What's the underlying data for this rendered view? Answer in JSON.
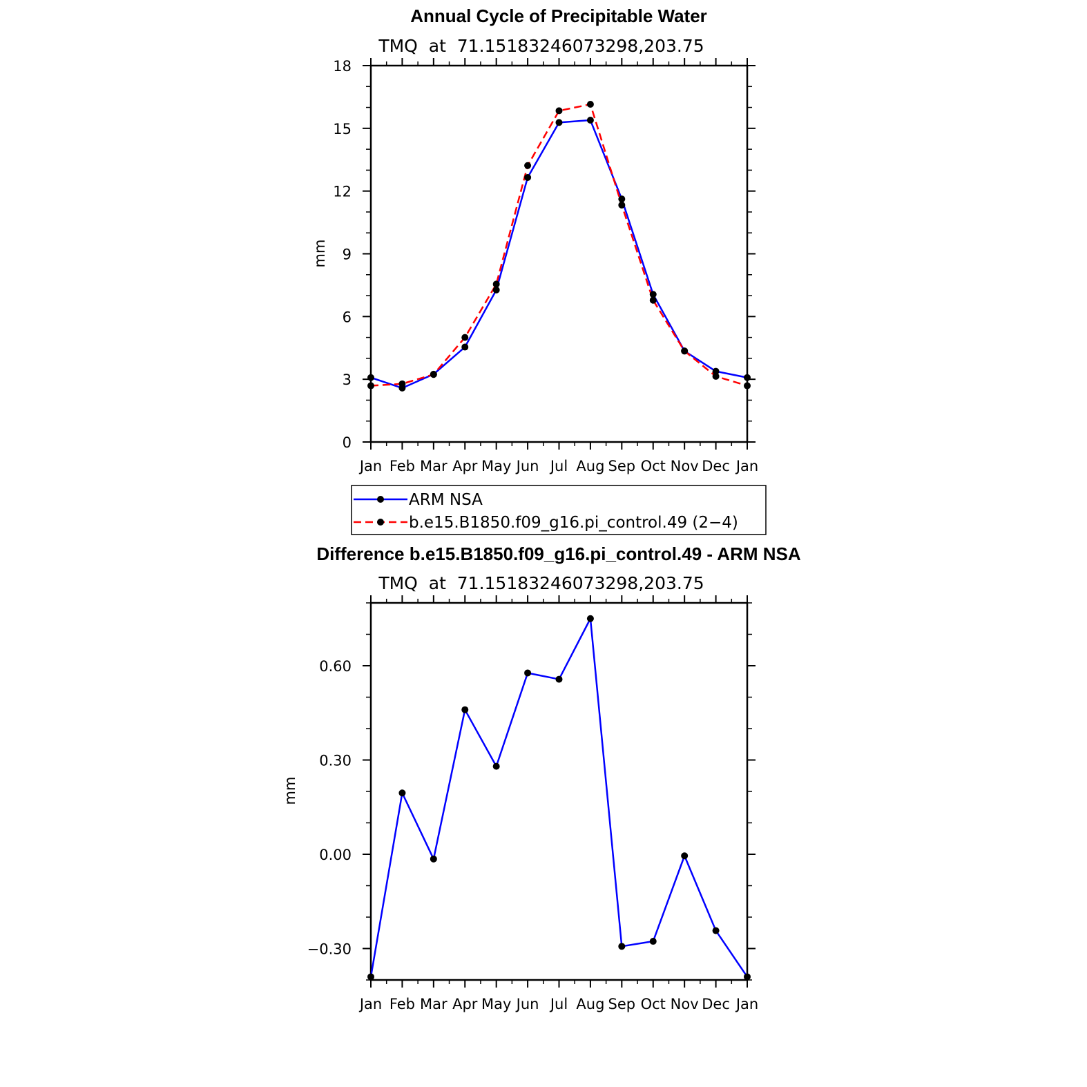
{
  "chart_data": [
    {
      "type": "line",
      "title": "Annual Cycle of Precipitable Water",
      "subtitle": "TMQ  at  71.15183246073298,203.75",
      "xlabel": "",
      "ylabel": "mm",
      "categories": [
        "Jan",
        "Feb",
        "Mar",
        "Apr",
        "May",
        "Jun",
        "Jul",
        "Aug",
        "Sep",
        "Oct",
        "Nov",
        "Dec",
        "Jan"
      ],
      "ylim": [
        0,
        18
      ],
      "yticks": [
        0,
        3,
        6,
        9,
        12,
        15,
        18
      ],
      "ytick_labels": [
        "0",
        "3",
        "6",
        "9",
        "12",
        "15",
        "18"
      ],
      "legend_position": "below",
      "series": [
        {
          "name": "ARM NSA",
          "color": "#0000ff",
          "dash": "solid",
          "values": [
            3.08,
            2.58,
            3.24,
            4.54,
            7.27,
            12.65,
            15.28,
            15.39,
            11.62,
            7.06,
            4.35,
            3.38,
            3.08
          ]
        },
        {
          "name": "b.e15.B1850.f09_g16.pi_control.49 (2−4)",
          "color": "#ff0000",
          "dash": "dashed",
          "values": [
            2.69,
            2.78,
            3.23,
            5.0,
            7.55,
            13.22,
            15.84,
            16.15,
            11.33,
            6.78,
            4.35,
            3.14,
            2.69
          ]
        }
      ]
    },
    {
      "type": "line",
      "title": "Difference b.e15.B1850.f09_g16.pi_control.49 - ARM NSA",
      "subtitle": "TMQ  at  71.15183246073298,203.75",
      "xlabel": "",
      "ylabel": "mm",
      "categories": [
        "Jan",
        "Feb",
        "Mar",
        "Apr",
        "May",
        "Jun",
        "Jul",
        "Aug",
        "Sep",
        "Oct",
        "Nov",
        "Dec",
        "Jan"
      ],
      "ylim": [
        -0.4,
        0.8
      ],
      "yticks": [
        -0.3,
        0.0,
        0.3,
        0.6
      ],
      "ytick_labels": [
        "−0.30",
        "0.00",
        "0.30",
        "0.60"
      ],
      "series": [
        {
          "name": "",
          "color": "#0000ff",
          "dash": "solid",
          "values": [
            -0.39,
            0.195,
            -0.015,
            0.46,
            0.28,
            0.577,
            0.557,
            0.75,
            -0.293,
            -0.277,
            -0.005,
            -0.243,
            -0.39
          ]
        }
      ]
    }
  ]
}
